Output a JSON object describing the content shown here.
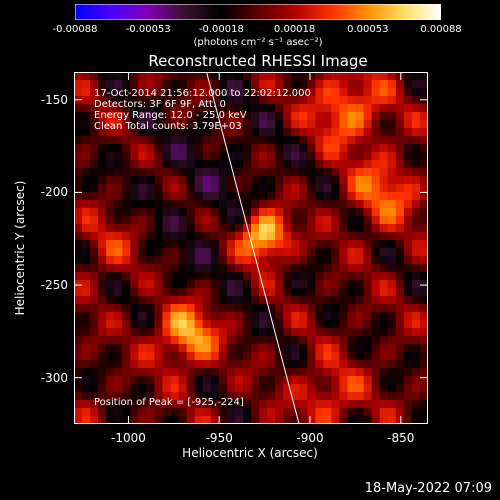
{
  "colorbar": {
    "colors": [
      "#0000ff",
      "#4b00ff",
      "#8000b0",
      "#3a1030",
      "#000000",
      "#5a0000",
      "#b00000",
      "#ff3000",
      "#ff9000",
      "#ffe060",
      "#ffffff"
    ],
    "ticks": [
      "-0.00088",
      "-0.00053",
      "-0.00018",
      "0.00018",
      "0.00053",
      "0.00088"
    ],
    "units_text": "(photons cm⁻² s⁻¹ asec⁻²)"
  },
  "info": {
    "time_range": "17-Oct-2014 21:56:12.000 to 22:02:12.000",
    "detectors": "Detectors: 3F 6F 9F, Att: 0",
    "energy": "Energy Range: 12.0 - 25.0 keV",
    "method": "Clean     Total counts: 3.79E+03",
    "peak": "Position of Peak = [-925,-224]"
  },
  "footer": {
    "timestamp": "18-May-2022 07:09"
  },
  "chart_data": {
    "type": "heatmap",
    "title": "Reconstructed RHESSI Image",
    "xlabel": "Heliocentric X (arcsec)",
    "ylabel": "Heliocentric Y (arcsec)",
    "xlim": [
      -1030,
      -835
    ],
    "ylim": [
      -325,
      -135
    ],
    "x_ticks": [
      -1000,
      -950,
      -900,
      -850
    ],
    "y_ticks": [
      -150,
      -200,
      -250,
      -300
    ],
    "x_tick_labels": [
      "-1000",
      "-950",
      "-900",
      "-850"
    ],
    "y_tick_labels": [
      "-150",
      "-200",
      "-250",
      "-300"
    ],
    "colorbar_range": [
      -0.00088,
      0.00088
    ],
    "peak_position": [
      -925,
      -224
    ],
    "sources": [
      {
        "x": -925,
        "y": -224,
        "amplitude": 0.00088,
        "sigma": 10
      },
      {
        "x": -968,
        "y": -277,
        "amplitude": 0.00065,
        "sigma": 12
      },
      {
        "x": -880,
        "y": -155,
        "amplitude": 0.0005,
        "sigma": 14
      },
      {
        "x": -860,
        "y": -200,
        "amplitude": 0.0004,
        "sigma": 14
      },
      {
        "x": -890,
        "y": -310,
        "amplitude": 0.00035,
        "sigma": 12
      },
      {
        "x": -1010,
        "y": -230,
        "amplitude": 0.00025,
        "sigma": 13
      }
    ],
    "limb_line": [
      [
        -957,
        -135
      ],
      [
        -906,
        -325
      ]
    ]
  }
}
